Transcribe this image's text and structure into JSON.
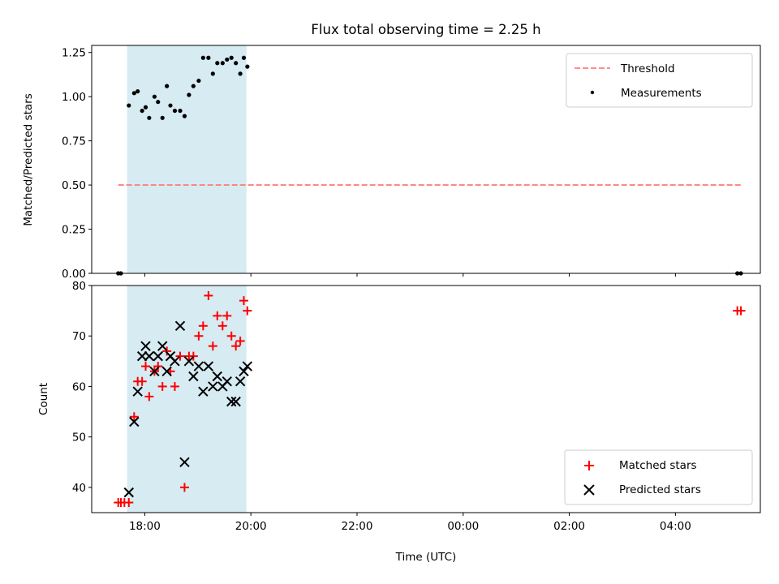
{
  "chart_data": [
    {
      "type": "scatter",
      "title": "Flux total observing time = 2.25 h",
      "ylabel": "Matched/Predicted stars",
      "xlabel": "",
      "ylim": [
        0,
        1.29
      ],
      "yticks": [
        "0.00",
        "0.25",
        "0.50",
        "0.75",
        "1.00",
        "1.25"
      ],
      "shaded_interval": [
        "17:40",
        "19:55"
      ],
      "legend_position": "upper right",
      "threshold": {
        "name": "Threshold",
        "value": 0.5,
        "x_range": [
          "17:30",
          "05:15"
        ],
        "color": "#ff7f7f"
      },
      "series": [
        {
          "name": "Measurements",
          "marker": "dot",
          "color": "#000000",
          "points": [
            [
              "17:30",
              0.0
            ],
            [
              "17:33",
              0.0
            ],
            [
              "17:42",
              0.95
            ],
            [
              "17:48",
              1.02
            ],
            [
              "17:52",
              1.03
            ],
            [
              "17:57",
              0.92
            ],
            [
              "18:01",
              0.94
            ],
            [
              "18:05",
              0.88
            ],
            [
              "18:11",
              1.0
            ],
            [
              "18:15",
              0.97
            ],
            [
              "18:20",
              0.88
            ],
            [
              "18:25",
              1.06
            ],
            [
              "18:29",
              0.95
            ],
            [
              "18:34",
              0.92
            ],
            [
              "18:40",
              0.92
            ],
            [
              "18:45",
              0.89
            ],
            [
              "18:50",
              1.01
            ],
            [
              "18:55",
              1.06
            ],
            [
              "19:01",
              1.09
            ],
            [
              "19:06",
              1.22
            ],
            [
              "19:12",
              1.22
            ],
            [
              "19:17",
              1.13
            ],
            [
              "19:22",
              1.19
            ],
            [
              "19:28",
              1.19
            ],
            [
              "19:33",
              1.21
            ],
            [
              "19:38",
              1.22
            ],
            [
              "19:43",
              1.19
            ],
            [
              "19:48",
              1.13
            ],
            [
              "19:52",
              1.22
            ],
            [
              "19:56",
              1.17
            ],
            [
              "05:10",
              0.0
            ],
            [
              "05:14",
              0.0
            ]
          ]
        }
      ]
    },
    {
      "type": "scatter",
      "title": "",
      "ylabel": "Count",
      "xlabel": "Time (UTC)",
      "ylim": [
        35,
        80
      ],
      "yticks": [
        "40",
        "50",
        "60",
        "70",
        "80"
      ],
      "xticks": [
        "18:00",
        "20:00",
        "22:00",
        "00:00",
        "02:00",
        "04:00"
      ],
      "shaded_interval": [
        "17:40",
        "19:55"
      ],
      "legend_position": "lower right",
      "series": [
        {
          "name": "Matched stars",
          "marker": "plus",
          "color": "#ff0000",
          "points": [
            [
              "17:30",
              37
            ],
            [
              "17:33",
              37
            ],
            [
              "17:37",
              37
            ],
            [
              "17:42",
              37
            ],
            [
              "17:48",
              54
            ],
            [
              "17:52",
              61
            ],
            [
              "17:57",
              61
            ],
            [
              "18:01",
              64
            ],
            [
              "18:05",
              58
            ],
            [
              "18:11",
              63
            ],
            [
              "18:15",
              64
            ],
            [
              "18:20",
              60
            ],
            [
              "18:25",
              67
            ],
            [
              "18:29",
              63
            ],
            [
              "18:34",
              60
            ],
            [
              "18:40",
              66
            ],
            [
              "18:45",
              40
            ],
            [
              "18:50",
              66
            ],
            [
              "18:55",
              66
            ],
            [
              "19:01",
              70
            ],
            [
              "19:06",
              72
            ],
            [
              "19:12",
              78
            ],
            [
              "19:17",
              68
            ],
            [
              "19:22",
              74
            ],
            [
              "19:28",
              72
            ],
            [
              "19:33",
              74
            ],
            [
              "19:38",
              70
            ],
            [
              "19:43",
              68
            ],
            [
              "19:48",
              69
            ],
            [
              "19:52",
              77
            ],
            [
              "19:56",
              75
            ],
            [
              "05:10",
              75
            ],
            [
              "05:14",
              75
            ]
          ]
        },
        {
          "name": "Predicted stars",
          "marker": "x",
          "color": "#000000",
          "points": [
            [
              "17:42",
              39
            ],
            [
              "17:48",
              53
            ],
            [
              "17:52",
              59
            ],
            [
              "17:57",
              66
            ],
            [
              "18:01",
              68
            ],
            [
              "18:05",
              66
            ],
            [
              "18:11",
              63
            ],
            [
              "18:15",
              66
            ],
            [
              "18:20",
              68
            ],
            [
              "18:25",
              63
            ],
            [
              "18:29",
              66
            ],
            [
              "18:34",
              65
            ],
            [
              "18:40",
              72
            ],
            [
              "18:45",
              45
            ],
            [
              "18:50",
              65
            ],
            [
              "18:55",
              62
            ],
            [
              "19:01",
              64
            ],
            [
              "19:06",
              59
            ],
            [
              "19:12",
              64
            ],
            [
              "19:17",
              60
            ],
            [
              "19:22",
              62
            ],
            [
              "19:28",
              60
            ],
            [
              "19:33",
              61
            ],
            [
              "19:38",
              57
            ],
            [
              "19:43",
              57
            ],
            [
              "19:48",
              61
            ],
            [
              "19:52",
              63
            ],
            [
              "19:56",
              64
            ]
          ]
        }
      ]
    }
  ],
  "colors": {
    "shade": "#add8e6",
    "threshold": "#ff7f7f",
    "matched": "#ff0000",
    "predicted": "#000000",
    "measurement": "#000000"
  }
}
